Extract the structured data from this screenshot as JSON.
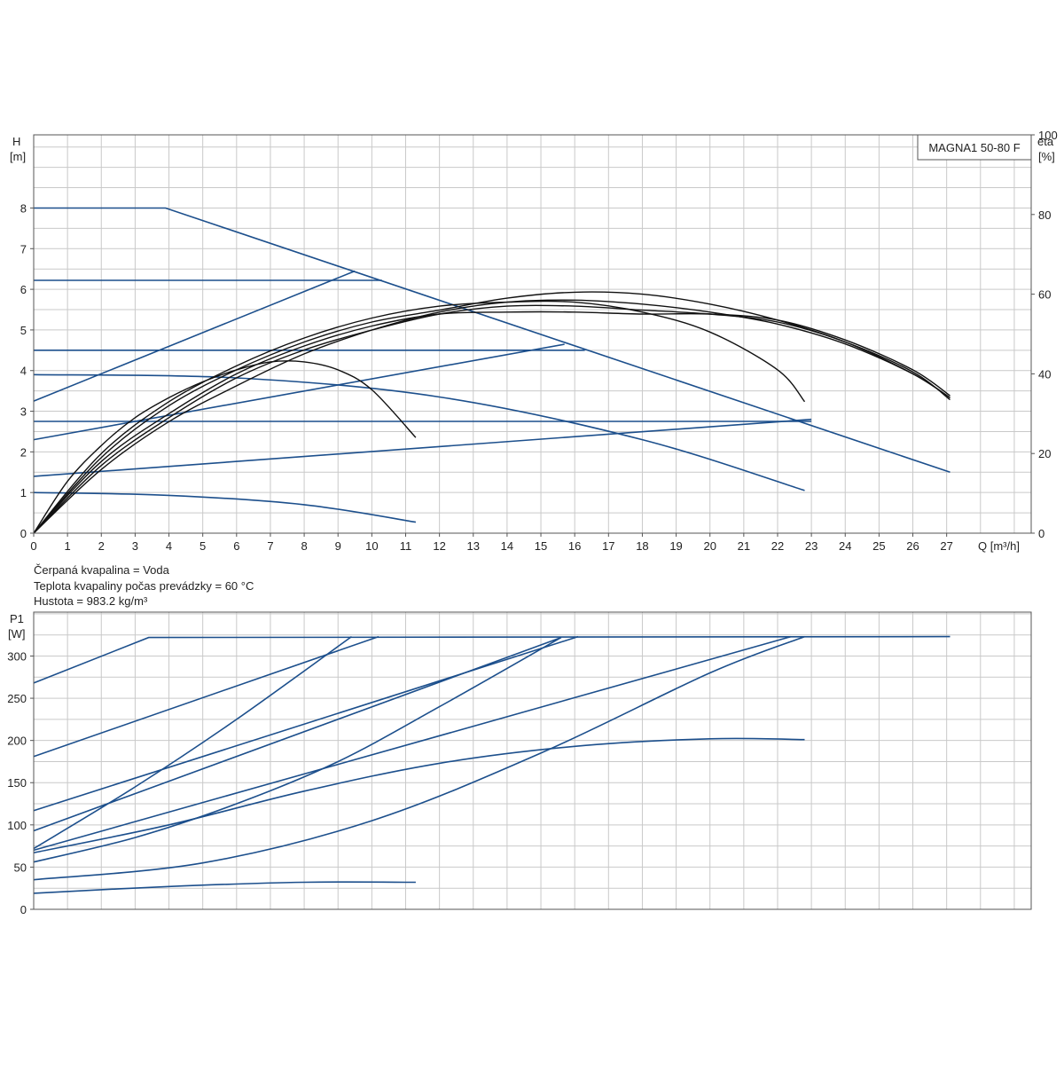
{
  "chart_data": [
    {
      "type": "line",
      "title": "MAGNA1 50-80 F",
      "xlabel": "Q [m³/h]",
      "ylabel": "H",
      "ylabel_unit": "[m]",
      "y2label": "eta",
      "y2label_unit": "[%]",
      "xlim": [
        0,
        29.5
      ],
      "ylim": [
        0,
        9.8
      ],
      "y2lim": [
        0,
        100
      ],
      "x_ticks": [
        "0",
        "1",
        "2",
        "3",
        "4",
        "5",
        "6",
        "7",
        "8",
        "9",
        "10",
        "11",
        "12",
        "13",
        "14",
        "15",
        "16",
        "17",
        "18",
        "19",
        "20",
        "21",
        "22",
        "23",
        "24",
        "25",
        "26",
        "27"
      ],
      "y_ticks": [
        "0",
        "1",
        "2",
        "3",
        "4",
        "5",
        "6",
        "7",
        "8"
      ],
      "y2_ticks": [
        "0",
        "20",
        "40",
        "60",
        "80",
        "100"
      ],
      "grid": true,
      "colors": {
        "head": "#1c4f8c",
        "efficiency": "#111111"
      },
      "head_series": [
        {
          "x": [
            0,
            3.9,
            27.1
          ],
          "y": [
            8.0,
            8.0,
            1.5
          ]
        },
        {
          "x": [
            0,
            10.3
          ],
          "y": [
            6.22,
            6.22
          ]
        },
        {
          "x": [
            0,
            9.5
          ],
          "y": [
            3.25,
            6.45
          ]
        },
        {
          "x": [
            0,
            16.3
          ],
          "y": [
            4.5,
            4.5
          ]
        },
        {
          "x": [
            0,
            15.7
          ],
          "y": [
            2.3,
            4.65
          ]
        },
        {
          "x": [
            0,
            23
          ],
          "y": [
            2.75,
            2.75
          ]
        },
        {
          "x": [
            0,
            23
          ],
          "y": [
            1.4,
            2.8
          ]
        },
        {
          "x": [
            0,
            6,
            12,
            18,
            22.8
          ],
          "y": [
            3.9,
            3.82,
            3.35,
            2.3,
            1.05
          ]
        },
        {
          "x": [
            0,
            4,
            8,
            11.3
          ],
          "y": [
            1.0,
            0.93,
            0.7,
            0.27
          ]
        }
      ],
      "efficiency_series": [
        {
          "x": [
            0,
            1,
            2,
            3,
            4,
            5,
            6,
            7,
            8,
            9,
            10,
            11.3
          ],
          "y": [
            0,
            13,
            22,
            29,
            34,
            38,
            41,
            43,
            43,
            41,
            36,
            24
          ]
        },
        {
          "x": [
            0,
            2,
            4,
            6,
            8,
            10,
            12,
            14,
            16,
            18,
            20,
            22,
            22.8
          ],
          "y": [
            0,
            20,
            33,
            42,
            49,
            54,
            57,
            58,
            58,
            55.5,
            50.5,
            41,
            33
          ]
        },
        {
          "x": [
            0,
            2,
            4,
            6,
            8,
            10,
            12,
            14,
            16,
            18,
            20,
            22,
            24,
            26,
            27.1
          ],
          "y": [
            0,
            19,
            32,
            41,
            48,
            53,
            56,
            59,
            60.5,
            60,
            57.5,
            53.5,
            48,
            40,
            34
          ]
        },
        {
          "x": [
            0,
            2,
            4,
            6,
            8,
            10,
            12,
            14,
            16,
            18,
            20,
            22,
            24,
            26,
            27.1
          ],
          "y": [
            0,
            18,
            30,
            40,
            47,
            52,
            55,
            55.5,
            55.5,
            55,
            55,
            53.5,
            48.5,
            41,
            34.5
          ]
        },
        {
          "x": [
            0,
            2,
            4,
            6,
            8,
            10,
            12,
            14,
            16,
            18,
            20,
            22,
            24,
            26,
            27.1
          ],
          "y": [
            0,
            17,
            29,
            39,
            46,
            51,
            55,
            57,
            57,
            56,
            55,
            53,
            48,
            40.5,
            33.5
          ]
        },
        {
          "x": [
            0,
            2,
            4,
            6,
            8,
            10,
            12,
            14,
            16,
            18,
            20,
            22,
            24,
            26,
            27.1
          ],
          "y": [
            0,
            16,
            28,
            37,
            45,
            51,
            55.5,
            58,
            58.5,
            57.5,
            55.5,
            52.5,
            47.5,
            40,
            34
          ]
        }
      ]
    },
    {
      "type": "line",
      "xlabel": "",
      "ylabel": "P1",
      "ylabel_unit": "[W]",
      "xlim": [
        0,
        29.5
      ],
      "ylim": [
        0,
        352
      ],
      "y_ticks": [
        "0",
        "50",
        "100",
        "150",
        "200",
        "250",
        "300"
      ],
      "grid": true,
      "colors": {
        "power": "#1c4f8c"
      },
      "series": [
        {
          "x": [
            0,
            3.4,
            27.1
          ],
          "y": [
            268,
            322,
            323
          ]
        },
        {
          "x": [
            0,
            10.2
          ],
          "y": [
            181,
            323
          ]
        },
        {
          "x": [
            0,
            3,
            6,
            9.4
          ],
          "y": [
            72,
            145,
            225,
            323
          ]
        },
        {
          "x": [
            0,
            16.1
          ],
          "y": [
            117,
            323
          ]
        },
        {
          "x": [
            0,
            15.6
          ],
          "y": [
            93,
            322
          ]
        },
        {
          "x": [
            0,
            3,
            6,
            9,
            12,
            15.6
          ],
          "y": [
            56,
            85,
            125,
            175,
            240,
            322
          ]
        },
        {
          "x": [
            0,
            4,
            8,
            12,
            16,
            20,
            22.8
          ],
          "y": [
            67,
            100,
            140,
            173,
            193,
            202,
            201
          ]
        },
        {
          "x": [
            0,
            22.4
          ],
          "y": [
            70,
            323
          ]
        },
        {
          "x": [
            0,
            5,
            10,
            15,
            20,
            22.8
          ],
          "y": [
            35,
            55,
            105,
            185,
            280,
            323
          ]
        },
        {
          "x": [
            0,
            4,
            8,
            11.3
          ],
          "y": [
            19,
            27,
            32,
            32
          ]
        }
      ]
    }
  ],
  "medium_info": {
    "line1": "Čerpaná kvapalina = Voda",
    "line2": "Teplota kvapaliny počas prevádzky = 60 °C",
    "line3": "Hustota = 983.2 kg/m³"
  }
}
